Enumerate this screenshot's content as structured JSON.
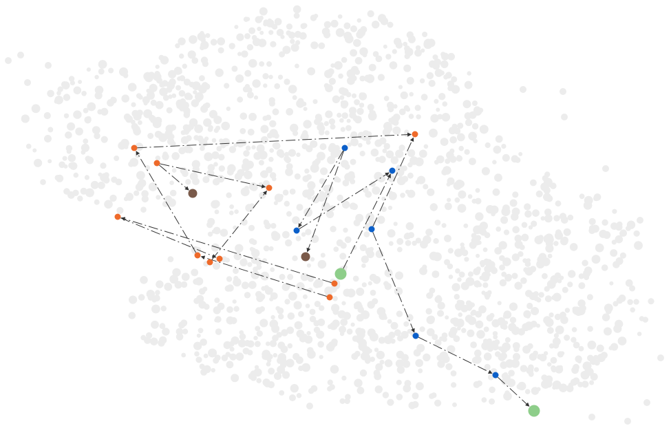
{
  "colors": {
    "background_cloud": "#ececec",
    "orange": "#ee6a2a",
    "blue": "#0b5fc9",
    "brown": "#7a5a4a",
    "green": "#8ece8a",
    "edge": "#333333"
  },
  "node_types": [
    "orange",
    "blue",
    "brown",
    "green"
  ],
  "edge_style": "dash-dot-arrow"
}
